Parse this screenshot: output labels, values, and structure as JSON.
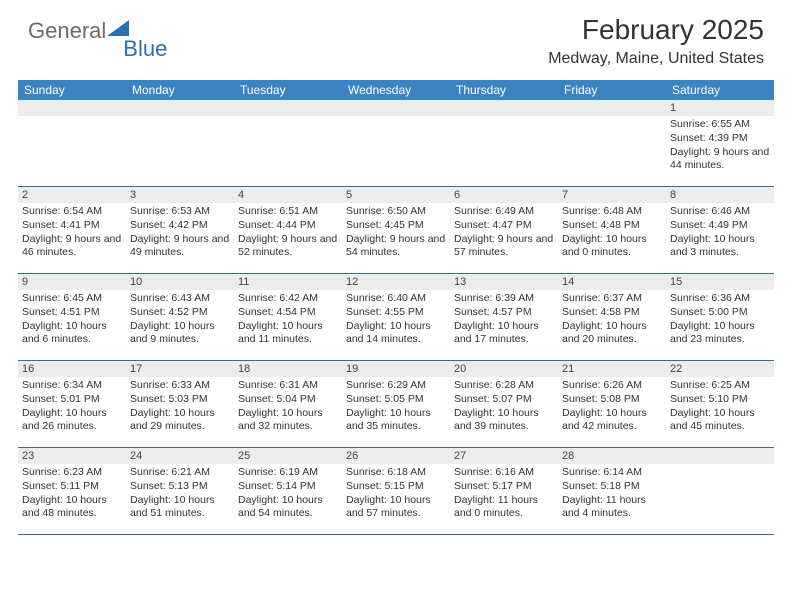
{
  "logo": {
    "general": "General",
    "blue": "Blue",
    "tri_color": "#2b6fb0"
  },
  "title": "February 2025",
  "location": "Medway, Maine, United States",
  "header_bg": "#3b84c4",
  "weekdays": [
    "Sunday",
    "Monday",
    "Tuesday",
    "Wednesday",
    "Thursday",
    "Friday",
    "Saturday"
  ],
  "weeks": [
    [
      {
        "n": "",
        "sr": "",
        "ss": "",
        "dl": ""
      },
      {
        "n": "",
        "sr": "",
        "ss": "",
        "dl": ""
      },
      {
        "n": "",
        "sr": "",
        "ss": "",
        "dl": ""
      },
      {
        "n": "",
        "sr": "",
        "ss": "",
        "dl": ""
      },
      {
        "n": "",
        "sr": "",
        "ss": "",
        "dl": ""
      },
      {
        "n": "",
        "sr": "",
        "ss": "",
        "dl": ""
      },
      {
        "n": "1",
        "sr": "Sunrise: 6:55 AM",
        "ss": "Sunset: 4:39 PM",
        "dl": "Daylight: 9 hours and 44 minutes."
      }
    ],
    [
      {
        "n": "2",
        "sr": "Sunrise: 6:54 AM",
        "ss": "Sunset: 4:41 PM",
        "dl": "Daylight: 9 hours and 46 minutes."
      },
      {
        "n": "3",
        "sr": "Sunrise: 6:53 AM",
        "ss": "Sunset: 4:42 PM",
        "dl": "Daylight: 9 hours and 49 minutes."
      },
      {
        "n": "4",
        "sr": "Sunrise: 6:51 AM",
        "ss": "Sunset: 4:44 PM",
        "dl": "Daylight: 9 hours and 52 minutes."
      },
      {
        "n": "5",
        "sr": "Sunrise: 6:50 AM",
        "ss": "Sunset: 4:45 PM",
        "dl": "Daylight: 9 hours and 54 minutes."
      },
      {
        "n": "6",
        "sr": "Sunrise: 6:49 AM",
        "ss": "Sunset: 4:47 PM",
        "dl": "Daylight: 9 hours and 57 minutes."
      },
      {
        "n": "7",
        "sr": "Sunrise: 6:48 AM",
        "ss": "Sunset: 4:48 PM",
        "dl": "Daylight: 10 hours and 0 minutes."
      },
      {
        "n": "8",
        "sr": "Sunrise: 6:46 AM",
        "ss": "Sunset: 4:49 PM",
        "dl": "Daylight: 10 hours and 3 minutes."
      }
    ],
    [
      {
        "n": "9",
        "sr": "Sunrise: 6:45 AM",
        "ss": "Sunset: 4:51 PM",
        "dl": "Daylight: 10 hours and 6 minutes."
      },
      {
        "n": "10",
        "sr": "Sunrise: 6:43 AM",
        "ss": "Sunset: 4:52 PM",
        "dl": "Daylight: 10 hours and 9 minutes."
      },
      {
        "n": "11",
        "sr": "Sunrise: 6:42 AM",
        "ss": "Sunset: 4:54 PM",
        "dl": "Daylight: 10 hours and 11 minutes."
      },
      {
        "n": "12",
        "sr": "Sunrise: 6:40 AM",
        "ss": "Sunset: 4:55 PM",
        "dl": "Daylight: 10 hours and 14 minutes."
      },
      {
        "n": "13",
        "sr": "Sunrise: 6:39 AM",
        "ss": "Sunset: 4:57 PM",
        "dl": "Daylight: 10 hours and 17 minutes."
      },
      {
        "n": "14",
        "sr": "Sunrise: 6:37 AM",
        "ss": "Sunset: 4:58 PM",
        "dl": "Daylight: 10 hours and 20 minutes."
      },
      {
        "n": "15",
        "sr": "Sunrise: 6:36 AM",
        "ss": "Sunset: 5:00 PM",
        "dl": "Daylight: 10 hours and 23 minutes."
      }
    ],
    [
      {
        "n": "16",
        "sr": "Sunrise: 6:34 AM",
        "ss": "Sunset: 5:01 PM",
        "dl": "Daylight: 10 hours and 26 minutes."
      },
      {
        "n": "17",
        "sr": "Sunrise: 6:33 AM",
        "ss": "Sunset: 5:03 PM",
        "dl": "Daylight: 10 hours and 29 minutes."
      },
      {
        "n": "18",
        "sr": "Sunrise: 6:31 AM",
        "ss": "Sunset: 5:04 PM",
        "dl": "Daylight: 10 hours and 32 minutes."
      },
      {
        "n": "19",
        "sr": "Sunrise: 6:29 AM",
        "ss": "Sunset: 5:05 PM",
        "dl": "Daylight: 10 hours and 35 minutes."
      },
      {
        "n": "20",
        "sr": "Sunrise: 6:28 AM",
        "ss": "Sunset: 5:07 PM",
        "dl": "Daylight: 10 hours and 39 minutes."
      },
      {
        "n": "21",
        "sr": "Sunrise: 6:26 AM",
        "ss": "Sunset: 5:08 PM",
        "dl": "Daylight: 10 hours and 42 minutes."
      },
      {
        "n": "22",
        "sr": "Sunrise: 6:25 AM",
        "ss": "Sunset: 5:10 PM",
        "dl": "Daylight: 10 hours and 45 minutes."
      }
    ],
    [
      {
        "n": "23",
        "sr": "Sunrise: 6:23 AM",
        "ss": "Sunset: 5:11 PM",
        "dl": "Daylight: 10 hours and 48 minutes."
      },
      {
        "n": "24",
        "sr": "Sunrise: 6:21 AM",
        "ss": "Sunset: 5:13 PM",
        "dl": "Daylight: 10 hours and 51 minutes."
      },
      {
        "n": "25",
        "sr": "Sunrise: 6:19 AM",
        "ss": "Sunset: 5:14 PM",
        "dl": "Daylight: 10 hours and 54 minutes."
      },
      {
        "n": "26",
        "sr": "Sunrise: 6:18 AM",
        "ss": "Sunset: 5:15 PM",
        "dl": "Daylight: 10 hours and 57 minutes."
      },
      {
        "n": "27",
        "sr": "Sunrise: 6:16 AM",
        "ss": "Sunset: 5:17 PM",
        "dl": "Daylight: 11 hours and 0 minutes."
      },
      {
        "n": "28",
        "sr": "Sunrise: 6:14 AM",
        "ss": "Sunset: 5:18 PM",
        "dl": "Daylight: 11 hours and 4 minutes."
      },
      {
        "n": "",
        "sr": "",
        "ss": "",
        "dl": ""
      }
    ]
  ]
}
